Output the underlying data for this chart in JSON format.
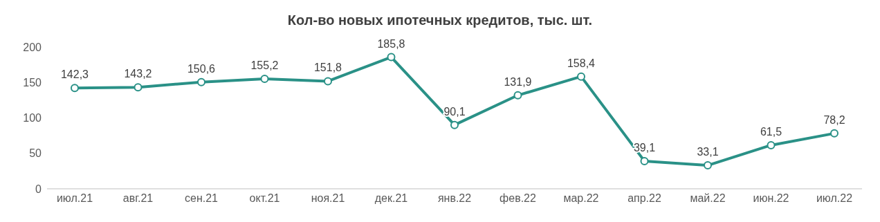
{
  "chart_data": {
    "type": "line",
    "title": "Кол-во новых ипотечных кредитов, тыс. шт.",
    "categories": [
      "июл.21",
      "авг.21",
      "сен.21",
      "окт.21",
      "ноя.21",
      "дек.21",
      "янв.22",
      "фев.22",
      "мар.22",
      "апр.22",
      "май.22",
      "июн.22",
      "июл.22"
    ],
    "series": [
      {
        "color": "#2a9187",
        "values": [
          142.3,
          143.2,
          150.6,
          155.2,
          151.8,
          185.8,
          90.1,
          131.9,
          158.4,
          39.1,
          33.1,
          61.5,
          78.2
        ],
        "value_labels": [
          "142,3",
          "143,2",
          "150,6",
          "155,2",
          "151,8",
          "185,8",
          "90,1",
          "131,9",
          "158,4",
          "39,1",
          "33,1",
          "61,5",
          "78,2"
        ]
      }
    ],
    "ylim": [
      0,
      200
    ],
    "yticks": [
      0,
      50,
      100,
      150,
      200
    ],
    "grid": false,
    "legend": false,
    "marker": "circle",
    "line_style": "solid"
  }
}
